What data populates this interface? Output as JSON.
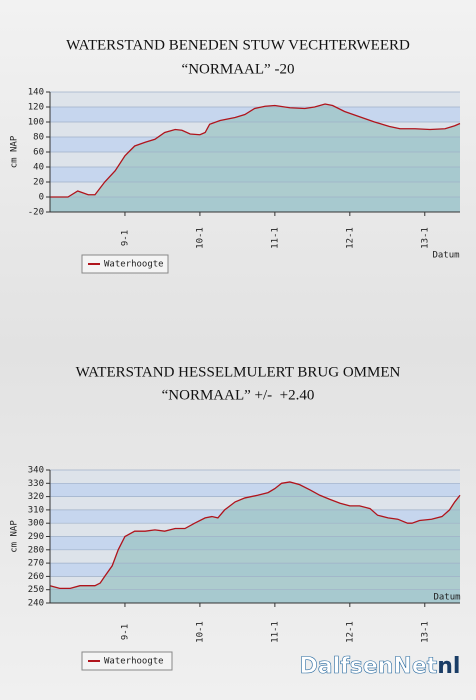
{
  "chart_data": [
    {
      "type": "line",
      "title": "WATERSTAND BENEDEN STUW VECHTERWEERD",
      "subtitle": "“NORMAAL” -20",
      "y_label": "cm NAP",
      "x_label": "Datum",
      "x": [
        8.0,
        8.24,
        8.37,
        8.51,
        8.6,
        8.73,
        8.87,
        9.0,
        9.13,
        9.27,
        9.4,
        9.53,
        9.67,
        9.76,
        9.87,
        10.0,
        10.07,
        10.13,
        10.27,
        10.47,
        10.6,
        10.73,
        10.87,
        11.0,
        11.2,
        11.4,
        11.53,
        11.67,
        11.77,
        11.93,
        12.13,
        12.33,
        12.53,
        12.67,
        12.87,
        13.07,
        13.27,
        13.4,
        13.47
      ],
      "series": [
        {
          "name": "Waterhoogte",
          "color": "#b0141c",
          "values": [
            0,
            0,
            8,
            3,
            3,
            20,
            35,
            55,
            68,
            73,
            77,
            86,
            90,
            89,
            84,
            83,
            86,
            97,
            102,
            106,
            110,
            118,
            121,
            122,
            119,
            118,
            120,
            124,
            122,
            114,
            107,
            100,
            94,
            91,
            91,
            90,
            91,
            95,
            98
          ]
        }
      ],
      "xlim": [
        8,
        13.47
      ],
      "xticks": [
        {
          "value": 9,
          "label": "9-1"
        },
        {
          "value": 10,
          "label": "10-1"
        },
        {
          "value": 11,
          "label": "11-1"
        },
        {
          "value": 12,
          "label": "12-1"
        },
        {
          "value": 13,
          "label": "13-1"
        }
      ],
      "ylim": [
        -20,
        140
      ],
      "yticks": [
        -20,
        0,
        20,
        40,
        60,
        80,
        100,
        120,
        140
      ],
      "grid": true,
      "area_color": "#9cc4c4"
    },
    {
      "type": "line",
      "title": "WATERSTAND HESSELMULERT BRUG OMMEN",
      "subtitle": "“NORMAAL” +/-  +2.40",
      "y_label": "cm NAP",
      "x_label": "Datum",
      "x": [
        8.0,
        8.13,
        8.27,
        8.4,
        8.6,
        8.67,
        8.73,
        8.83,
        8.91,
        9.0,
        9.13,
        9.27,
        9.4,
        9.53,
        9.67,
        9.8,
        9.93,
        10.07,
        10.16,
        10.24,
        10.33,
        10.47,
        10.6,
        10.77,
        10.91,
        11.0,
        11.09,
        11.2,
        11.33,
        11.47,
        11.6,
        11.73,
        11.87,
        12.0,
        12.13,
        12.27,
        12.37,
        12.51,
        12.64,
        12.77,
        12.83,
        12.93,
        13.09,
        13.23,
        13.33,
        13.4,
        13.47
      ],
      "series": [
        {
          "name": "Waterhoogte",
          "color": "#b0141c",
          "values": [
            253,
            251,
            251,
            253,
            253,
            255,
            260,
            268,
            280,
            290,
            294,
            294,
            295,
            294,
            296,
            296,
            300,
            304,
            305,
            304,
            310,
            316,
            319,
            321,
            323,
            326,
            330,
            331,
            329,
            325,
            321,
            318,
            315,
            313,
            313,
            311,
            306,
            304,
            303,
            300,
            300,
            302,
            303,
            305,
            310,
            316,
            321
          ]
        }
      ],
      "xlim": [
        8,
        13.47
      ],
      "xticks": [
        {
          "value": 9,
          "label": "9-1"
        },
        {
          "value": 10,
          "label": "10-1"
        },
        {
          "value": 11,
          "label": "11-1"
        },
        {
          "value": 12,
          "label": "12-1"
        },
        {
          "value": 13,
          "label": "13-1"
        }
      ],
      "ylim": [
        240,
        340
      ],
      "yticks": [
        240,
        250,
        260,
        270,
        280,
        290,
        300,
        310,
        320,
        330,
        340
      ],
      "grid": true,
      "area_color": "#9cc4c4"
    }
  ],
  "watermark": [
    "DalfsenNet",
    "nl"
  ]
}
